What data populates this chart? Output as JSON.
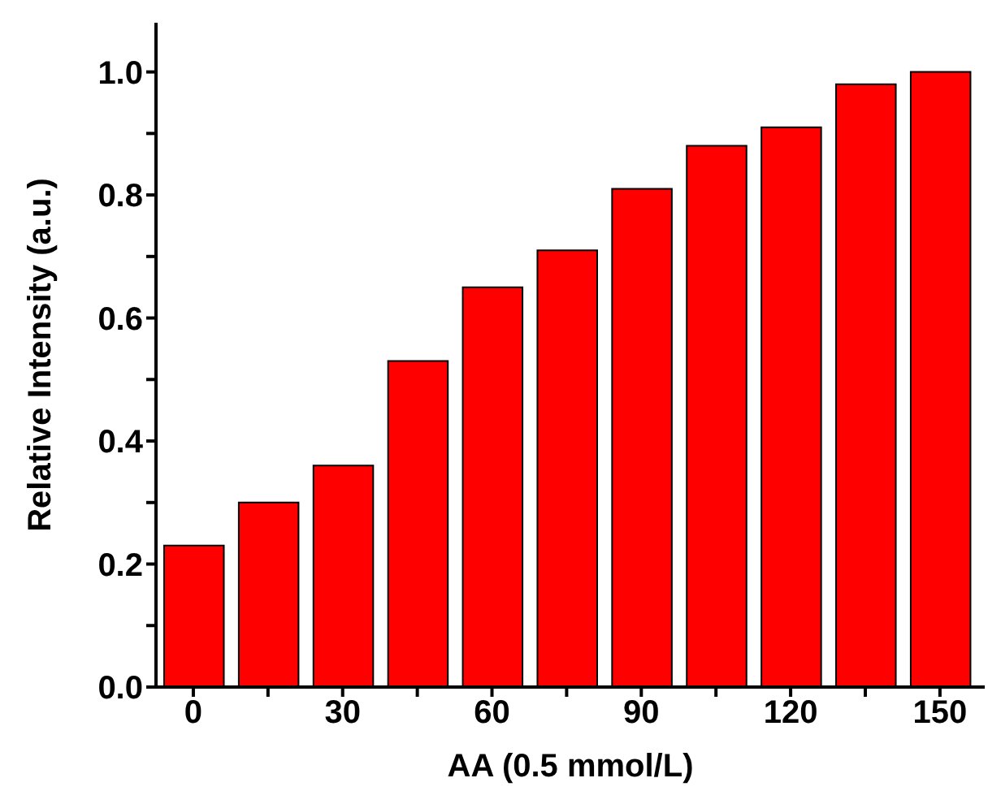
{
  "chart_data": {
    "type": "bar",
    "xlabel": "AA (0.5 mmol/L)",
    "ylabel": "Relative Intensity (a.u.)",
    "x": [
      0,
      15,
      30,
      45,
      60,
      75,
      90,
      105,
      120,
      135,
      150
    ],
    "values": [
      0.23,
      0.3,
      0.36,
      0.53,
      0.65,
      0.71,
      0.81,
      0.88,
      0.91,
      0.98,
      1.0
    ],
    "color": "#ff0000",
    "xlim": [
      -7.5,
      159
    ],
    "xticks": [
      0,
      {
        "value": 15,
        "label": null
      },
      30,
      {
        "value": 45,
        "label": null
      },
      60,
      {
        "value": 75,
        "label": null
      },
      90,
      {
        "value": 105,
        "label": null
      },
      120,
      {
        "value": 135,
        "label": null
      },
      150
    ],
    "ylim": [
      0,
      1.08
    ],
    "yticks": [
      {
        "value": 0,
        "label": "0.0"
      },
      {
        "value": 0.1,
        "label": null
      },
      {
        "value": 0.2,
        "label": "0.2"
      },
      {
        "value": 0.3,
        "label": null
      },
      {
        "value": 0.4,
        "label": "0.4"
      },
      {
        "value": 0.5,
        "label": null
      },
      {
        "value": 0.6,
        "label": "0.6"
      },
      {
        "value": 0.7,
        "label": null
      },
      {
        "value": 0.8,
        "label": "0.8"
      },
      {
        "value": 0.9,
        "label": null
      },
      {
        "value": 1.0,
        "label": "1.0"
      }
    ],
    "grid": false,
    "legend": false
  }
}
